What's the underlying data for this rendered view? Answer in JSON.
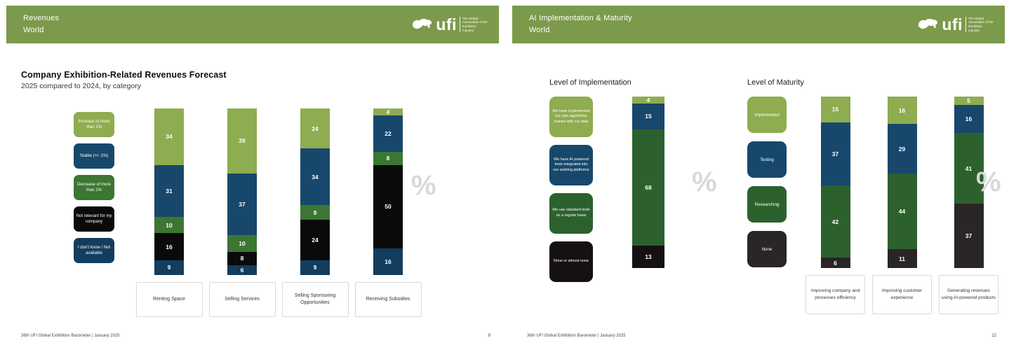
{
  "brand": {
    "name": "ufi",
    "tagline": "The Global Association of the Exhibition Industry"
  },
  "left_slide": {
    "header_title": "Revenues",
    "header_subtitle": "World",
    "footer": "36th UFI Global Exhibition Barometer | January 2025",
    "page_number": "8"
  },
  "right_slide": {
    "header_title": "AI Implementation & Maturity",
    "header_subtitle": "World",
    "footer": "36th UFI Global Exhibition Barometer | January 2025",
    "page_number": "22"
  },
  "chart_data": [
    {
      "type": "bar",
      "stacked": true,
      "orientation": "vertical",
      "unit": "%",
      "title": "Company Exhibition-Related Revenues Forecast",
      "subtitle": "2025 compared to 2024, by category",
      "legend_position": "left",
      "ylim": [
        0,
        100
      ],
      "categories": [
        "Renting Space",
        "Selling Services",
        "Selling Sponsoring Opportunities",
        "Receiving Subsidies"
      ],
      "series": [
        {
          "name": "Increase of more than 1%",
          "color": "#8EAC50",
          "values": [
            34,
            39,
            24,
            4
          ]
        },
        {
          "name": "Stable (+/- 1%)",
          "color": "#17486B",
          "values": [
            31,
            37,
            34,
            22
          ]
        },
        {
          "name": "Decrease of more than 1%",
          "color": "#3C7632",
          "values": [
            10,
            10,
            9,
            8
          ]
        },
        {
          "name": "Not relevant for my company",
          "color": "#0A0A0A",
          "values": [
            16,
            8,
            24,
            50
          ]
        },
        {
          "name": "I don't know / Not available",
          "color": "#133D5E",
          "values": [
            9,
            6,
            9,
            16
          ]
        }
      ]
    },
    {
      "type": "bar",
      "stacked": true,
      "orientation": "vertical",
      "unit": "%",
      "title": "Level of Implementation",
      "legend_position": "left",
      "ylim": [
        0,
        100
      ],
      "categories": [
        ""
      ],
      "series": [
        {
          "name": "We have implemented our own algorithms trained with our data",
          "color": "#8EAC50",
          "values": [
            4
          ]
        },
        {
          "name": "We have AI powered tools integrated into our existing platforms",
          "color": "#17486B",
          "values": [
            15
          ]
        },
        {
          "name": "We use standard tools on a regular basis",
          "color": "#2C612D",
          "values": [
            68
          ]
        },
        {
          "name": "None or almost none",
          "color": "#151112",
          "values": [
            13
          ]
        }
      ]
    },
    {
      "type": "bar",
      "stacked": true,
      "orientation": "vertical",
      "unit": "%",
      "title": "Level of Maturity",
      "legend_position": "left",
      "ylim": [
        0,
        100
      ],
      "categories": [
        "Improving company and processes efficiency",
        "Improving customer experience",
        "Generating revenues using AI-powered products"
      ],
      "series": [
        {
          "name": "Implemented",
          "color": "#8EAC50",
          "values": [
            15,
            16,
            5
          ]
        },
        {
          "name": "Testing",
          "color": "#17486B",
          "values": [
            37,
            29,
            16
          ]
        },
        {
          "name": "Researching",
          "color": "#2C612D",
          "values": [
            42,
            44,
            41
          ]
        },
        {
          "name": "None",
          "color": "#2A2526",
          "values": [
            6,
            11,
            37
          ]
        }
      ]
    }
  ]
}
